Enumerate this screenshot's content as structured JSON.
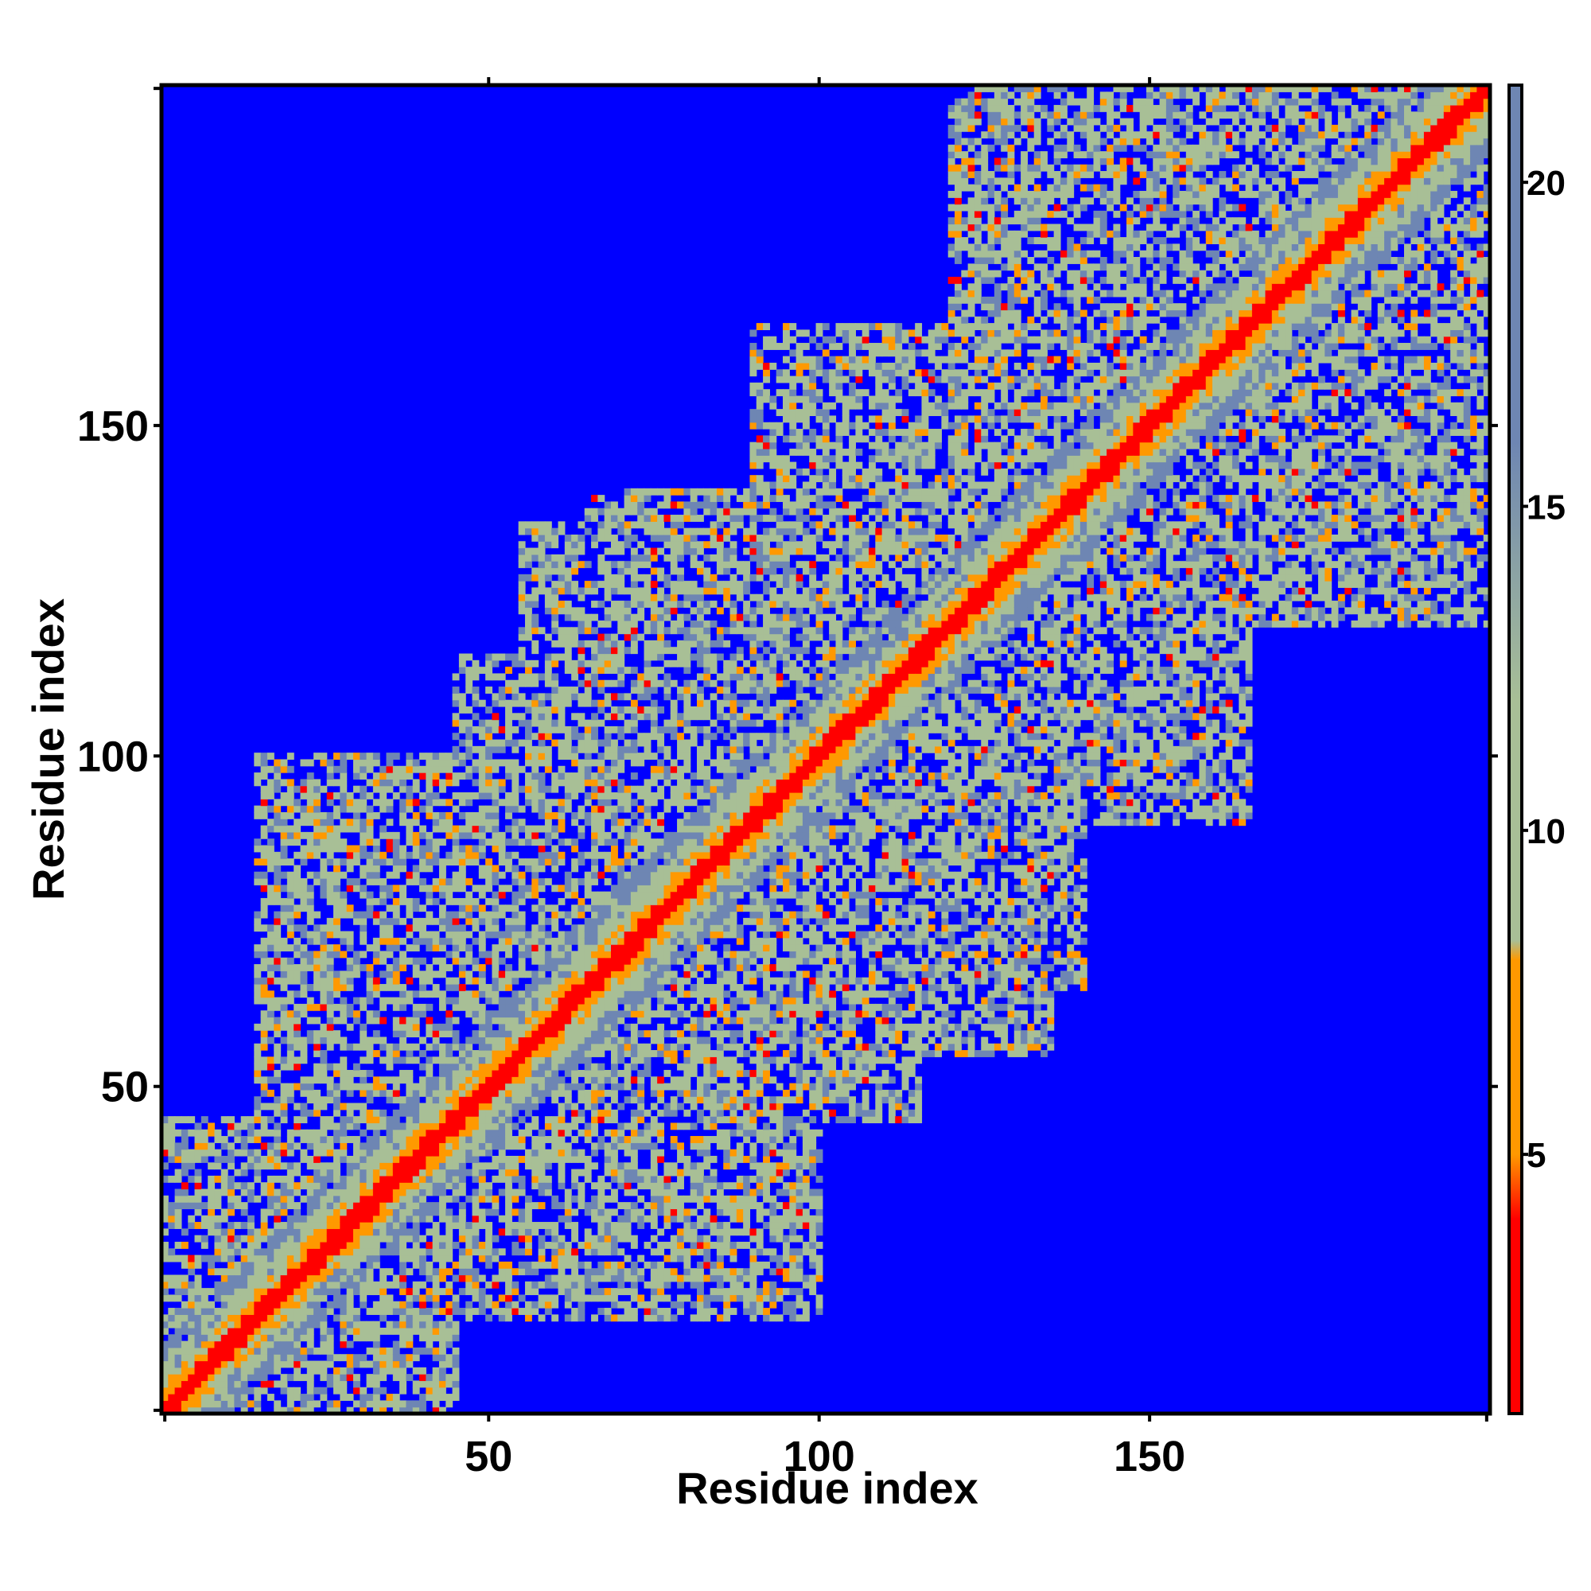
{
  "chart_data": {
    "type": "heatmap",
    "title": "",
    "xlabel": "Residue index",
    "ylabel": "Residue index",
    "n_residues": 201,
    "xlim": [
      1,
      201
    ],
    "ylim": [
      1,
      201
    ],
    "x_ticks": [
      50,
      100,
      150
    ],
    "y_ticks": [
      50,
      100,
      150
    ],
    "colorbar": {
      "ticks": [
        5,
        10,
        15,
        20
      ],
      "range": [
        1,
        21.5
      ],
      "colors": {
        "close": "#ff0000",
        "near": "#ff9900",
        "mid": "#a8bf96",
        "far": "#6e86b3",
        "background": "#0000ff"
      }
    },
    "contact_domains": [
      {
        "x": [
          1,
          45
        ],
        "y": [
          1,
          45
        ]
      },
      {
        "x": [
          15,
          45
        ],
        "y": [
          45,
          100
        ]
      },
      {
        "x": [
          45,
          100
        ],
        "y": [
          60,
          115
        ]
      },
      {
        "x": [
          65,
          120
        ],
        "y": [
          95,
          140
        ]
      },
      {
        "x": [
          90,
          145
        ],
        "y": [
          125,
          165
        ]
      },
      {
        "x": [
          120,
          180
        ],
        "y": [
          160,
          201
        ]
      },
      {
        "x": [
          150,
          201
        ],
        "y": [
          180,
          201
        ]
      },
      {
        "x": [
          50,
          95
        ],
        "y": [
          15,
          45
        ]
      },
      {
        "x": [
          70,
          135
        ],
        "y": [
          55,
          100
        ]
      },
      {
        "x": [
          100,
          155
        ],
        "y": [
          90,
          125
        ]
      },
      {
        "x": [
          130,
          180
        ],
        "y": [
          125,
          160
        ]
      },
      {
        "x": [
          160,
          201
        ],
        "y": [
          150,
          190
        ]
      }
    ]
  }
}
